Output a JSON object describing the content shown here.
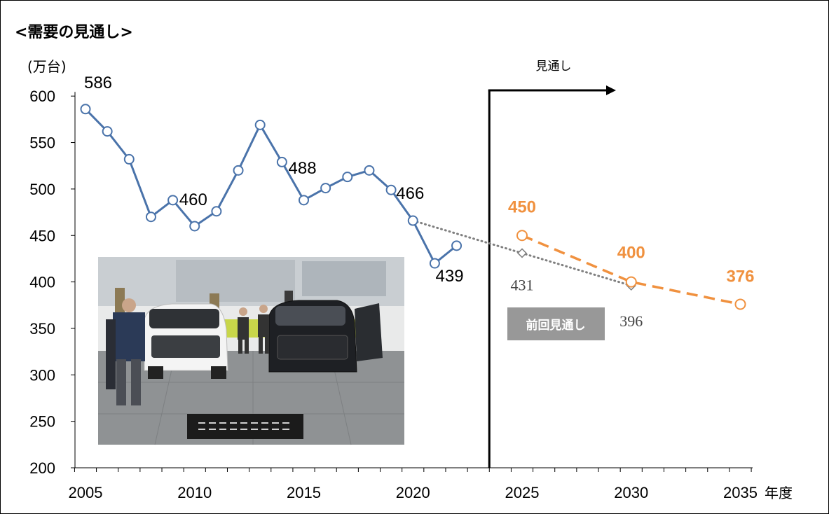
{
  "chart_data": {
    "type": "line",
    "title": "<需要の見通し>",
    "ylabel": "(万台)",
    "xlabel": "年度",
    "ylim": [
      200,
      600
    ],
    "yticks": [
      200,
      250,
      300,
      350,
      400,
      450,
      500,
      550,
      600
    ],
    "xlim": [
      2005,
      2035
    ],
    "xticks": [
      2005,
      2010,
      2015,
      2020,
      2025,
      2030,
      2035
    ],
    "series": [
      {
        "key": "actual",
        "color": "#4a73aa",
        "x": [
          2005,
          2006,
          2007,
          2008,
          2009,
          2010,
          2011,
          2012,
          2013,
          2014,
          2015,
          2016,
          2017,
          2018,
          2019,
          2020,
          2021,
          2022
        ],
        "values": [
          586,
          562,
          532,
          470,
          488,
          460,
          476,
          520,
          569,
          529,
          488,
          501,
          513,
          520,
          499,
          466,
          420,
          439
        ]
      },
      {
        "key": "previous",
        "name": "前回見通し",
        "color": "#7f7f7f",
        "x": [
          2020,
          2025,
          2030
        ],
        "values": [
          466,
          431,
          396
        ]
      },
      {
        "key": "new",
        "color": "#f0913f",
        "x": [
          2025,
          2030,
          2035
        ],
        "values": [
          450,
          400,
          376
        ]
      }
    ],
    "data_labels": [
      {
        "series": "actual",
        "x": 2005,
        "text": "586"
      },
      {
        "series": "actual",
        "x": 2010,
        "text": "460"
      },
      {
        "series": "actual",
        "x": 2015,
        "text": "488"
      },
      {
        "series": "actual",
        "x": 2020,
        "text": "466"
      },
      {
        "series": "actual",
        "x": 2022,
        "text": "439"
      },
      {
        "series": "previous",
        "x": 2025,
        "text": "431"
      },
      {
        "series": "previous",
        "x": 2030,
        "text": "396"
      },
      {
        "series": "new",
        "x": 2025,
        "text": "450"
      },
      {
        "series": "new",
        "x": 2030,
        "text": "400"
      },
      {
        "series": "new",
        "x": 2035,
        "text": "376"
      }
    ],
    "forecast_marker": {
      "x": 2023.5,
      "label": "見通し"
    },
    "previous_label": "前回見通し",
    "grid": false
  }
}
